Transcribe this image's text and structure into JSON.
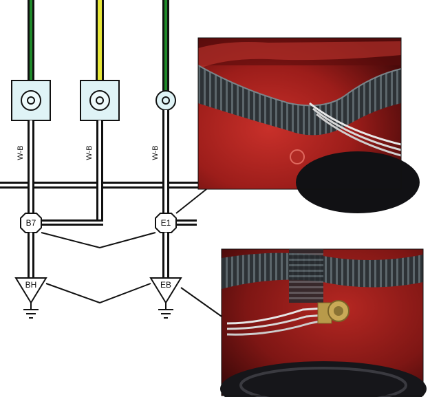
{
  "diagram": {
    "wire_labels": [
      "W-B",
      "W-B",
      "W-B"
    ],
    "junctions": [
      "B7",
      "E1"
    ],
    "grounds": [
      "BH",
      "EB"
    ]
  },
  "colors": {
    "wire_black": "#111111",
    "wire_green": "#1f8a2a",
    "wire_yellow": "#e8e83a",
    "connector_fill": "#dff3f6",
    "photo_red": "#9c1d1a",
    "photo_dark": "#1c1c1f"
  },
  "photos": [
    {
      "name": "top-photo",
      "depicts": "wire-harness-at-ground-point"
    },
    {
      "name": "bottom-photo",
      "depicts": "ground-terminal-bolt"
    }
  ]
}
